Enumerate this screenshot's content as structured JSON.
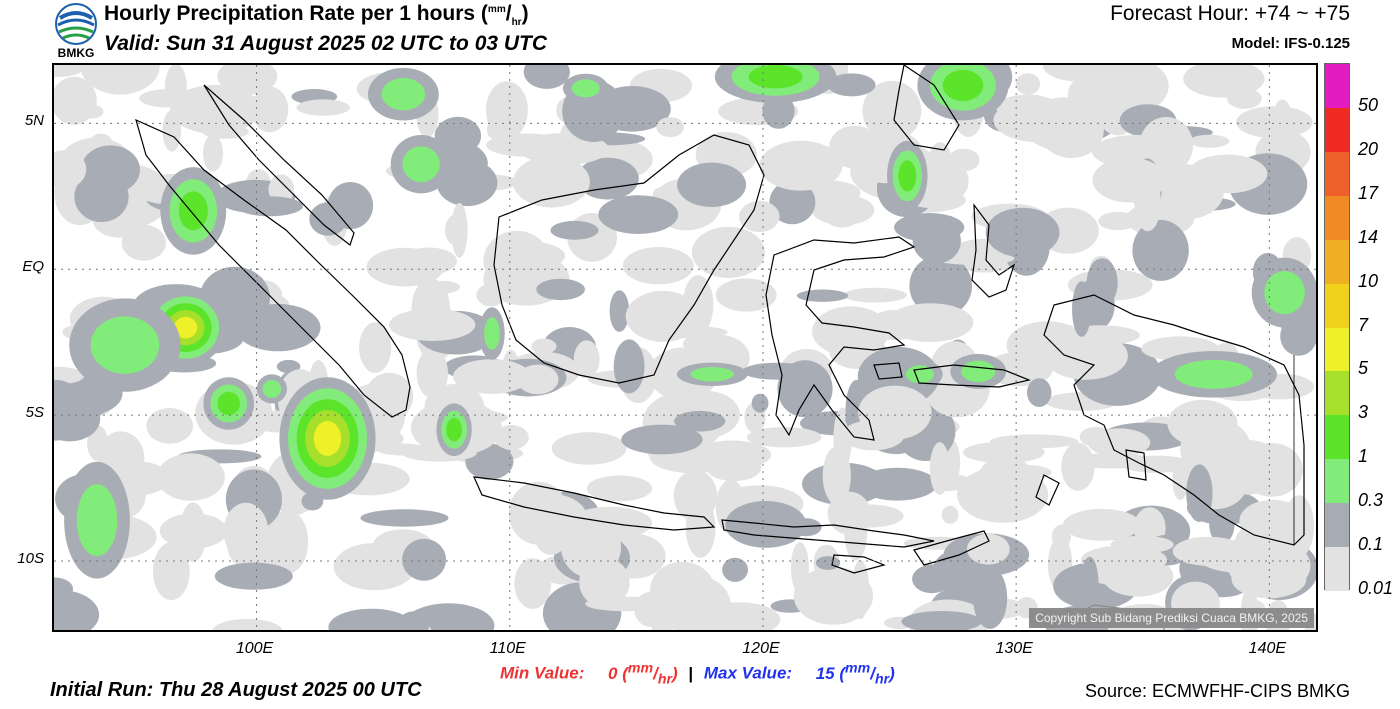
{
  "logo": {
    "text": "BMKG"
  },
  "header": {
    "title": "Hourly Precipitation Rate per 1 hours",
    "title_unit_sup": "mm",
    "title_unit_sub": "hr",
    "valid": "Valid: Sun 31 August 2025 02 UTC to 03 UTC",
    "forecast_hour": "Forecast Hour: +74 ~ +75",
    "model": "Model: IFS-0.125"
  },
  "map": {
    "region": "Indonesia",
    "lon_range": [
      92,
      142
    ],
    "lat_range": [
      -12.5,
      7.0
    ],
    "copyright": "Copyright Sub Bidang Prediksi Cuaca BMKG, 2025",
    "lat_ticks": [
      "5N",
      "EQ",
      "5S",
      "10S"
    ],
    "lat_values": [
      5,
      0,
      -5,
      -10
    ],
    "lon_ticks": [
      "100E",
      "110E",
      "120E",
      "130E",
      "140E"
    ],
    "lon_values": [
      100,
      110,
      120,
      130,
      140
    ],
    "gridlines": "dotted"
  },
  "colorbar": {
    "labels": [
      "50",
      "20",
      "17",
      "14",
      "10",
      "7",
      "5",
      "3",
      "1",
      "0.3",
      "0.1",
      "0.01"
    ],
    "colors": [
      "#e21cc0",
      "#ee2a22",
      "#f0602a",
      "#f08a24",
      "#f0ae22",
      "#f0d21c",
      "#eef02a",
      "#a6e02a",
      "#5ce42a",
      "#82ec7a",
      "#a8adb5",
      "#e2e2e2"
    ]
  },
  "stats": {
    "min_label": "Min Value:",
    "min_value": "0",
    "max_label": "Max Value:",
    "max_value": "15",
    "unit_sup": "mm",
    "unit_sub": "hr"
  },
  "footer": {
    "initial_run": "Initial Run: Thu 28 August 2025 00 UTC",
    "source": "Source: ECMWFHF-CIPS BMKG"
  },
  "chart_data": {
    "type": "heatmap",
    "variable": "Hourly Precipitation Rate",
    "unit": "mm/hr",
    "min": 0,
    "max": 15,
    "rain_areas": [
      {
        "lon": 97.5,
        "lat": 2.0,
        "rx": 1.3,
        "ry": 1.5,
        "level": 3
      },
      {
        "lon": 97.2,
        "lat": -2.0,
        "rx": 1.6,
        "ry": 1.3,
        "level": 5
      },
      {
        "lon": 94.8,
        "lat": -2.6,
        "rx": 2.2,
        "ry": 1.6,
        "level": 2
      },
      {
        "lon": 98.9,
        "lat": -4.6,
        "rx": 1.0,
        "ry": 0.9,
        "level": 3
      },
      {
        "lon": 102.8,
        "lat": -5.8,
        "rx": 1.9,
        "ry": 2.1,
        "level": 5
      },
      {
        "lon": 100.6,
        "lat": -4.1,
        "rx": 0.6,
        "ry": 0.5,
        "level": 2
      },
      {
        "lon": 106.5,
        "lat": 3.6,
        "rx": 1.2,
        "ry": 1.0,
        "level": 2
      },
      {
        "lon": 105.8,
        "lat": 6.0,
        "rx": 1.4,
        "ry": 0.9,
        "level": 2
      },
      {
        "lon": 107.8,
        "lat": -5.5,
        "rx": 0.7,
        "ry": 0.9,
        "level": 3
      },
      {
        "lon": 109.3,
        "lat": -2.2,
        "rx": 0.5,
        "ry": 0.9,
        "level": 2
      },
      {
        "lon": 113.0,
        "lat": 6.2,
        "rx": 0.9,
        "ry": 0.5,
        "level": 2
      },
      {
        "lon": 120.5,
        "lat": 6.6,
        "rx": 2.4,
        "ry": 0.9,
        "level": 3
      },
      {
        "lon": 125.7,
        "lat": 3.2,
        "rx": 0.8,
        "ry": 1.2,
        "level": 3
      },
      {
        "lon": 127.9,
        "lat": 6.3,
        "rx": 1.8,
        "ry": 1.2,
        "level": 3
      },
      {
        "lon": 126.2,
        "lat": -3.6,
        "rx": 0.9,
        "ry": 0.5,
        "level": 2
      },
      {
        "lon": 128.5,
        "lat": -3.5,
        "rx": 1.1,
        "ry": 0.6,
        "level": 2
      },
      {
        "lon": 137.8,
        "lat": -3.6,
        "rx": 2.5,
        "ry": 0.8,
        "level": 2
      },
      {
        "lon": 140.6,
        "lat": -0.8,
        "rx": 1.3,
        "ry": 1.2,
        "level": 2
      },
      {
        "lon": 118.0,
        "lat": -3.6,
        "rx": 1.4,
        "ry": 0.4,
        "level": 2
      },
      {
        "lon": 93.7,
        "lat": -8.6,
        "rx": 1.3,
        "ry": 2.0,
        "level": 2
      }
    ]
  }
}
